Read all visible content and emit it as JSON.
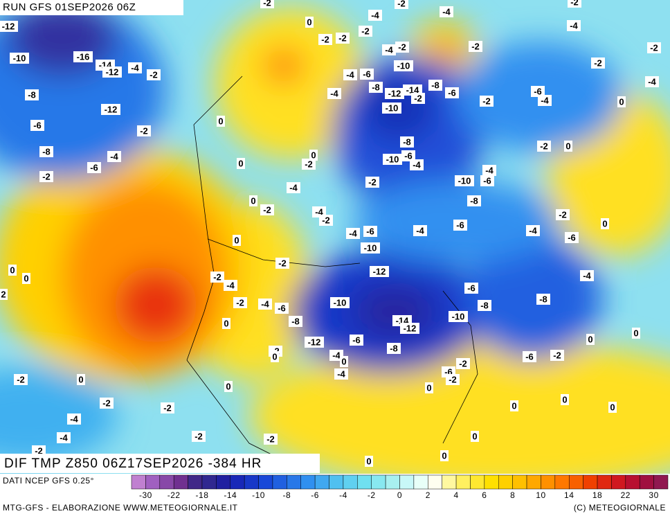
{
  "header": {
    "run": "RUN GFS 01SEP2026 06Z"
  },
  "map": {
    "title": "DIF TMP Z850 06Z17SEP2026 -384 HR",
    "contour_labels": [
      -12,
      -10,
      -16,
      -14,
      -12,
      -4,
      -2,
      -8,
      -12,
      -6,
      -2,
      -8,
      -4,
      -6,
      -2,
      0,
      0,
      0,
      -2,
      -4,
      -2,
      -2,
      -2,
      -4,
      -2,
      -2,
      -4,
      -2,
      -2,
      -4,
      -2,
      -2,
      -4,
      -6,
      -4,
      0,
      -10,
      -4,
      -6,
      -4,
      -8,
      -12,
      -14,
      -2,
      -8,
      -6,
      -2,
      -10,
      -8,
      -10,
      -6,
      -4,
      -2,
      0,
      -4,
      -10,
      -6,
      -2,
      -4,
      -2,
      0,
      0,
      -2,
      -4,
      -2,
      -4,
      -6,
      -10,
      -4,
      -8,
      -6,
      -2,
      0,
      -4,
      -6,
      0,
      -2,
      -12,
      0,
      0,
      2,
      -2,
      -4,
      -2,
      -4,
      -6,
      -10,
      -6,
      -8,
      -8,
      -4,
      -8,
      -14,
      -12,
      -10,
      0,
      -12,
      -6,
      -8,
      -2,
      0,
      -4,
      -2,
      0,
      -4,
      -6,
      -2,
      0,
      -6,
      -2,
      0,
      0,
      -2,
      0,
      0,
      -2,
      -2,
      -4,
      -4,
      -2,
      -2,
      -2,
      0,
      0,
      0,
      0,
      0,
      0
    ]
  },
  "colorbar": {
    "source": "DATI NCEP GFS 0.25°",
    "ticks": [
      -30,
      -22,
      -18,
      -14,
      -10,
      -8,
      -6,
      -4,
      -2,
      0,
      2,
      4,
      6,
      8,
      10,
      14,
      18,
      22,
      30
    ],
    "colors": [
      "#c080d0",
      "#a060c0",
      "#8848a8",
      "#703090",
      "#402888",
      "#302890",
      "#2020a0",
      "#1828b8",
      "#1838c8",
      "#1848d8",
      "#2060e0",
      "#2878e8",
      "#3090f0",
      "#40a8f0",
      "#50c0f0",
      "#60d0f0",
      "#70e0f0",
      "#88e8f0",
      "#a8f0f0",
      "#c8f8f8",
      "#e8fff8",
      "#fffff0",
      "#fff8a0",
      "#fff060",
      "#ffe830",
      "#ffe000",
      "#ffd000",
      "#ffc000",
      "#ffa800",
      "#ff9000",
      "#ff7800",
      "#f86000",
      "#f04000",
      "#e02810",
      "#d01820",
      "#b81030",
      "#a01040",
      "#901850"
    ]
  },
  "footer": {
    "left": "MTG-GFS - ELABORAZIONE WWW.METEOGIORNALE.IT",
    "right": "(C) METEOGIORNALE"
  }
}
